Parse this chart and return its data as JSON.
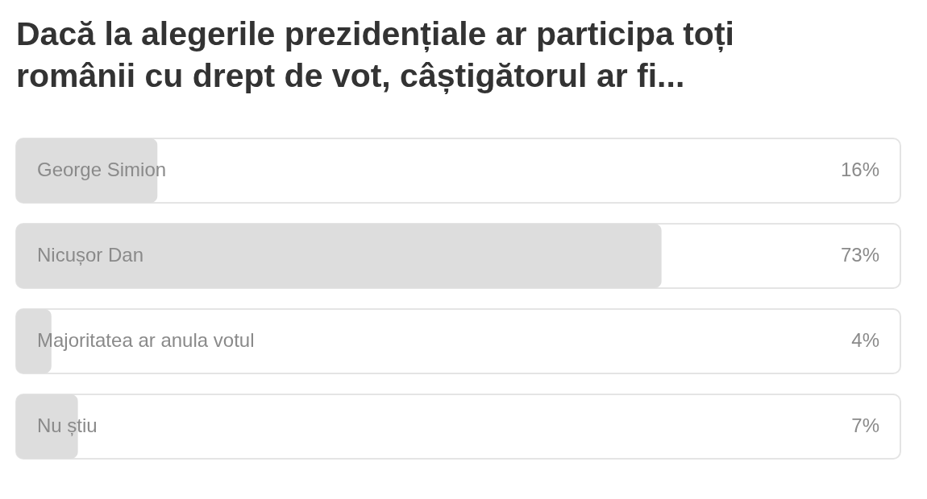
{
  "chart_data": {
    "type": "bar",
    "orientation": "horizontal",
    "title": "Dacă la alegerile prezidențiale ar participa toți românii cu drept de vot, câștigătorul ar fi...",
    "categories": [
      "George Simion",
      "Nicușor Dan",
      "Majoritatea ar anula votul",
      "Nu știu"
    ],
    "values": [
      16,
      73,
      4,
      7
    ],
    "color": "#dddddd",
    "xlim": [
      0,
      100
    ],
    "value_labels": [
      "16%",
      "73%",
      "4%",
      "7%"
    ]
  }
}
